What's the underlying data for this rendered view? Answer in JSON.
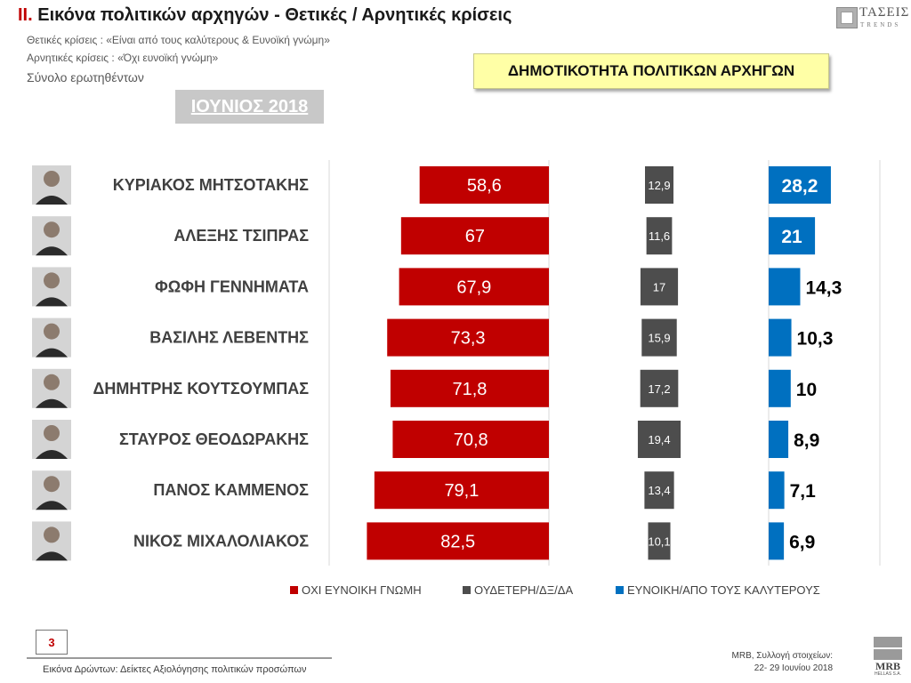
{
  "header": {
    "title_num": "II.",
    "title_text": "Εικόνα πολιτικών αρχηγών  - Θετικές / Αρνητικές κρίσεις",
    "positive_note": "Θετικές κρίσεις : «Είναι από τους καλύτερους &  Ευνοϊκή γνώμη»",
    "negative_note": "Αρνητικές κρίσεις : «Όχι ευνοϊκή γνώμη»",
    "base_note": "Σύνολο ερωτηθέντων",
    "logo_name": "ΤΑΣΕΙΣ",
    "logo_tag": "TRENDS",
    "banner": "ΔΗΜΟΤΙΚΟΤΗΤΑ ΠΟΛΙΤΙΚΩΝ ΑΡΧΗΓΩΝ",
    "period": "ΙΟΥΝΙΟΣ 2018"
  },
  "chart_data": {
    "type": "bar",
    "orientation": "horizontal",
    "categories": [
      "ΚΥΡΙΑΚΟΣ ΜΗΤΣΟΤΑΚΗΣ",
      "ΑΛΕΞΗΣ ΤΣΙΠΡΑΣ",
      "ΦΩΦΗ ΓΕΝΝΗΜΑΤΑ",
      "ΒΑΣΙΛΗΣ ΛΕΒΕΝΤΗΣ",
      "ΔΗΜΗΤΡΗΣ ΚΟΥΤΣΟΥΜΠΑΣ",
      "ΣΤΑΥΡΟΣ ΘΕΟΔΩΡΑΚΗΣ",
      "ΠΑΝΟΣ ΚΑΜΜΕΝΟΣ",
      "ΝΙΚΟΣ ΜΙΧΑΛΟΛΙΑΚΟΣ"
    ],
    "series": [
      {
        "name": "ΟΧΙ ΕΥΝΟΙΚΗ ΓΝΩΜΗ",
        "color": "#c00000",
        "labels": [
          "58,6",
          "67",
          "67,9",
          "73,3",
          "71,8",
          "70,8",
          "79,1",
          "82,5"
        ],
        "values": [
          58.6,
          67,
          67.9,
          73.3,
          71.8,
          70.8,
          79.1,
          82.5
        ]
      },
      {
        "name": "ΟΥΔΕΤΕΡΗ/ΔΞ/ΔΑ",
        "color": "#4d4d4d",
        "labels": [
          "12,9",
          "11,6",
          "17",
          "15,9",
          "17,2",
          "19,4",
          "13,4",
          "10,1"
        ],
        "values": [
          12.9,
          11.6,
          17,
          15.9,
          17.2,
          19.4,
          13.4,
          10.1
        ]
      },
      {
        "name": "ΕΥΝΟΙΚΗ/ΑΠΟ ΤΟΥΣ ΚΑΛΥΤΕΡΟΥΣ",
        "color": "#0070c0",
        "labels": [
          "28,2",
          "21",
          "14,3",
          "10,3",
          "10",
          "8,9",
          "7,1",
          "6,9"
        ],
        "values": [
          28.2,
          21,
          14.3,
          10.3,
          10,
          8.9,
          7.1,
          6.9
        ]
      }
    ],
    "legend_position": "bottom",
    "grid": false
  },
  "footer": {
    "page_number": "3",
    "note": "Εικόνα Δρώντων: Δείκτες Αξιολόγησης πολιτικών προσώπων",
    "source_line1": "MRB, Συλλογή στοιχείων:",
    "source_line2": "22- 29 Ιουνίου 2018",
    "mrb_logo": "MRB",
    "mrb_sub": "HELLAS S.A."
  }
}
